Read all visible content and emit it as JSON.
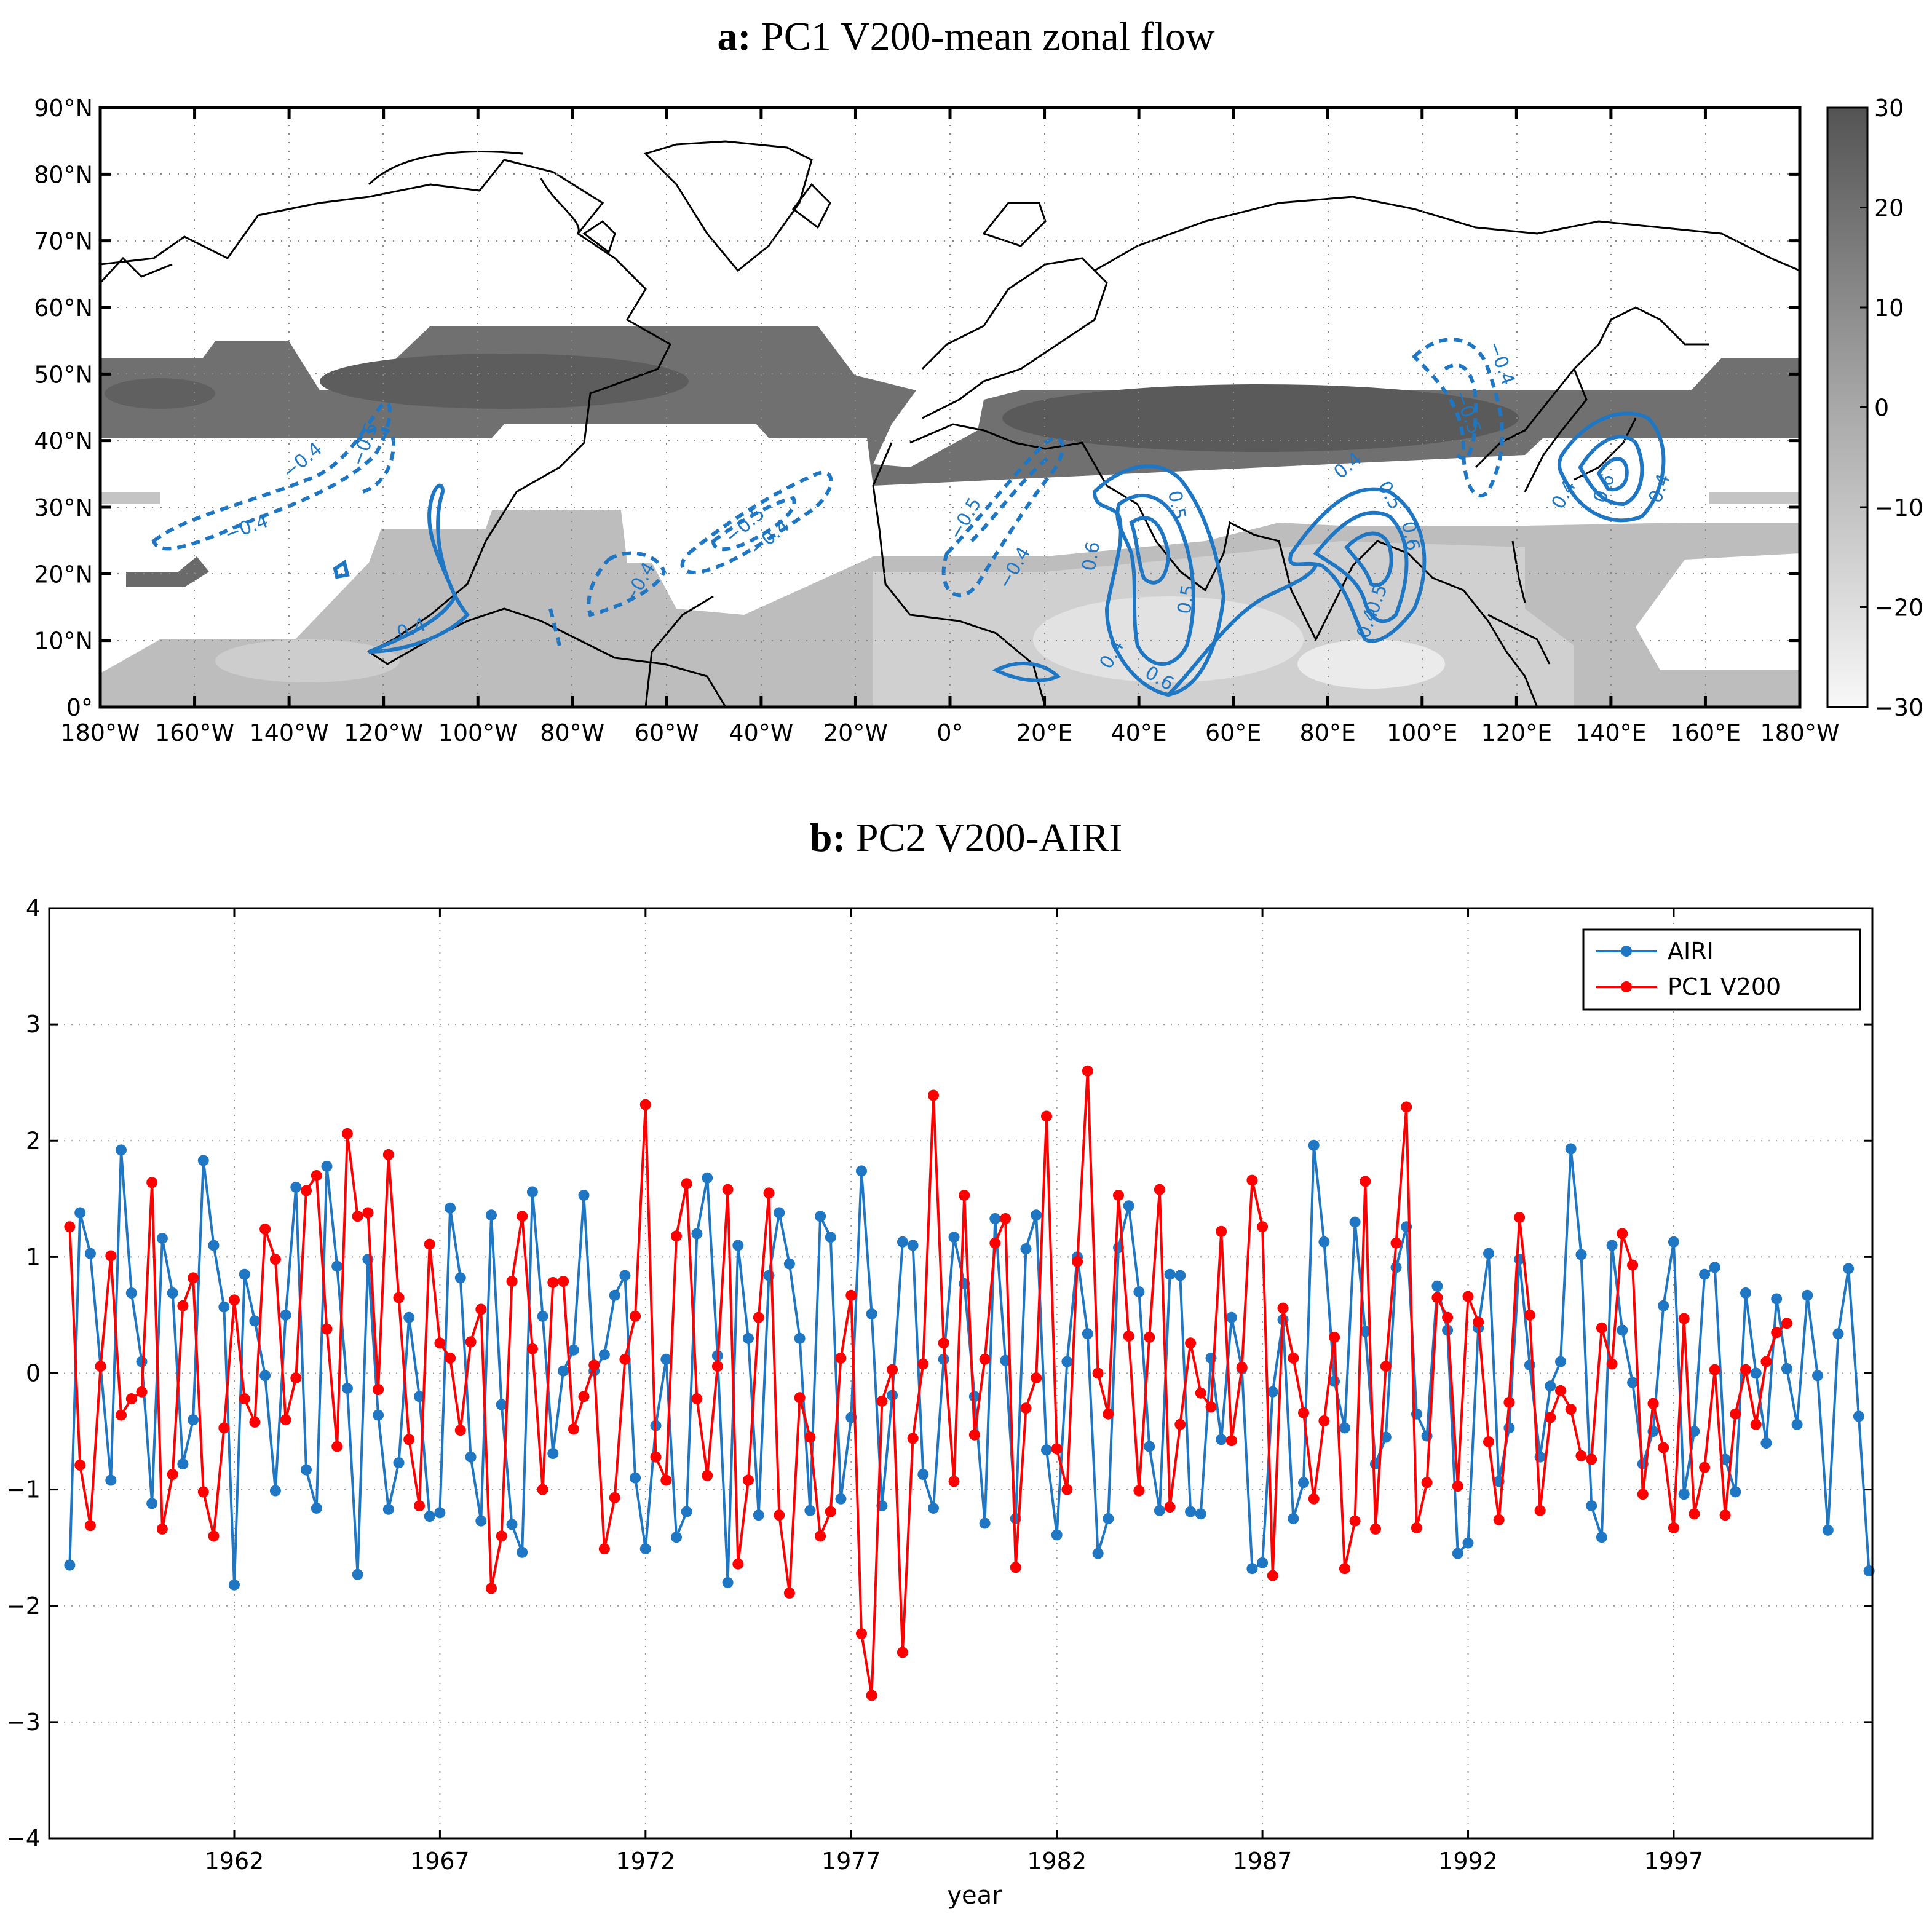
{
  "panel_a": {
    "title_bold": "a:",
    "title_rest": " PC1 V200-mean zonal flow",
    "lon_ticks": [
      "180°W",
      "160°W",
      "140°W",
      "120°W",
      "100°W",
      "80°W",
      "60°W",
      "40°W",
      "20°W",
      "0°",
      "20°E",
      "40°E",
      "60°E",
      "80°E",
      "100°E",
      "120°E",
      "140°E",
      "160°E",
      "180°W"
    ],
    "lat_ticks": [
      "0°",
      "10°N",
      "20°N",
      "30°N",
      "40°N",
      "50°N",
      "60°N",
      "70°N",
      "80°N",
      "90°N"
    ],
    "colorbar_ticks": [
      "30",
      "20",
      "10",
      "0",
      "−10",
      "−20",
      "−30"
    ],
    "contour_labels": [
      "−0.4",
      "−0.4",
      "−0.5",
      "0.4",
      "−0.4",
      "−0.5",
      "−0.4",
      "−0.5",
      "−0.4",
      "0.6",
      "0.5",
      "0.4",
      "0.6",
      "0.5",
      "0.4",
      "0.5",
      "0.6",
      "0.5",
      "0.4",
      "−0.5",
      "−0.4",
      "0.4",
      "0.6",
      "0.4"
    ],
    "colors": {
      "contour": "#1f77c4",
      "coast": "#000000"
    }
  },
  "panel_b": {
    "title_bold": "b:",
    "title_rest": " PC2 V200-AIRI"
  },
  "chart_data": {
    "type": "line",
    "title": "PC2 V200-AIRI",
    "xlabel": "year",
    "ylabel": "",
    "ylim": [
      -4,
      4
    ],
    "xlim": [
      1957.5,
      2001.83
    ],
    "x_start": 1958.0,
    "x_step": 0.25,
    "xticks": [
      1962,
      1967,
      1972,
      1977,
      1982,
      1987,
      1992,
      1997
    ],
    "yticks": [
      -4,
      -3,
      -2,
      -1,
      0,
      1,
      2,
      3,
      4
    ],
    "legend_position": "top-right",
    "series": [
      {
        "name": "AIRI",
        "color": "#1f77c4",
        "values": [
          -1.65,
          1.38,
          1.03,
          0.06,
          -0.92,
          1.92,
          0.69,
          0.1,
          -1.12,
          1.16,
          0.69,
          -0.78,
          -0.4,
          1.83,
          1.1,
          0.57,
          -1.82,
          0.85,
          0.45,
          -0.02,
          -1.01,
          0.5,
          1.6,
          -0.83,
          -1.16,
          1.78,
          0.92,
          -0.13,
          -1.73,
          0.98,
          -0.36,
          -1.17,
          -0.77,
          0.48,
          -0.2,
          -1.23,
          -1.2,
          1.42,
          0.82,
          -0.72,
          -1.27,
          1.36,
          -0.27,
          -1.3,
          -1.54,
          1.56,
          0.49,
          -0.69,
          0.02,
          0.2,
          1.53,
          0.02,
          0.16,
          0.67,
          0.84,
          -0.9,
          -1.51,
          -0.45,
          0.12,
          -1.41,
          -1.19,
          1.2,
          1.68,
          0.15,
          -1.8,
          1.1,
          0.3,
          -1.22,
          0.84,
          1.38,
          0.94,
          0.3,
          -1.18,
          1.35,
          1.17,
          -1.08,
          -0.38,
          1.74,
          0.51,
          -1.14,
          -0.19,
          1.13,
          1.1,
          -0.87,
          -1.16,
          0.12,
          1.17,
          0.77,
          -0.2,
          -1.29,
          1.33,
          0.11,
          -1.25,
          1.07,
          1.36,
          -0.66,
          -1.39,
          0.1,
          1.0,
          0.34,
          -1.55,
          -1.25,
          1.08,
          1.44,
          0.7,
          -0.63,
          -1.18,
          0.85,
          0.84,
          -1.19,
          -1.21,
          0.13,
          -0.57,
          0.48,
          0.04,
          -1.68,
          -1.63,
          -0.16,
          0.46,
          -1.25,
          -0.94,
          1.96,
          1.13,
          -0.07,
          -0.47,
          1.3,
          0.36,
          -0.78,
          -0.55,
          0.91,
          1.26,
          -0.35,
          -0.54,
          0.75,
          0.37,
          -1.55,
          -1.46,
          0.39,
          1.03,
          -0.93,
          -0.47,
          0.98,
          0.07,
          -0.72,
          -0.11,
          0.1,
          1.93,
          1.02,
          -1.14,
          -1.41,
          1.1,
          0.37,
          -0.08,
          -0.78,
          -0.5,
          0.58,
          1.13,
          -1.04,
          -0.5,
          0.85,
          0.91,
          -0.74,
          -1.02,
          0.69,
          0.0,
          -0.6,
          0.64,
          0.04,
          -0.44,
          0.67,
          -0.02,
          -1.35,
          0.34,
          0.9,
          -0.37,
          -1.7
        ]
      },
      {
        "name": "PC1 V200",
        "color": "#ff0000",
        "values": [
          1.26,
          -0.79,
          -1.31,
          0.06,
          1.01,
          -0.36,
          -0.22,
          -0.16,
          1.64,
          -1.34,
          -0.87,
          0.58,
          0.82,
          -1.02,
          -1.4,
          -0.47,
          0.63,
          -0.22,
          -0.42,
          1.24,
          0.98,
          -0.4,
          -0.04,
          1.57,
          1.7,
          0.38,
          -0.63,
          2.06,
          1.35,
          1.38,
          -0.14,
          1.88,
          0.65,
          -0.57,
          -1.14,
          1.11,
          0.26,
          0.13,
          -0.49,
          0.27,
          0.55,
          -1.85,
          -1.4,
          0.79,
          1.35,
          0.21,
          -1.0,
          0.78,
          0.79,
          -0.48,
          -0.2,
          0.07,
          -1.51,
          -1.07,
          0.12,
          0.49,
          2.31,
          -0.72,
          -0.92,
          1.18,
          1.63,
          -0.22,
          -0.88,
          0.06,
          1.58,
          -1.64,
          -0.92,
          0.48,
          1.55,
          -1.22,
          -1.89,
          -0.21,
          -0.55,
          -1.4,
          -1.19,
          0.13,
          0.67,
          -2.24,
          -2.77,
          -0.24,
          0.03,
          -2.4,
          -0.56,
          0.08,
          2.39,
          0.26,
          -0.93,
          1.53,
          -0.53,
          0.12,
          1.12,
          1.33,
          -1.67,
          -0.3,
          -0.04,
          2.21,
          -0.65,
          -1.0,
          0.96,
          2.6,
          0.0,
          -0.35,
          1.53,
          0.32,
          -1.01,
          0.31,
          1.58,
          -1.15,
          -0.44,
          0.26,
          -0.17,
          -0.29,
          1.22,
          -0.58,
          0.05,
          1.66,
          1.26,
          -1.74,
          0.56,
          0.13,
          -0.34,
          -1.08,
          -0.41,
          0.31,
          -1.68,
          -1.27,
          1.65,
          -1.34,
          0.06,
          1.12,
          2.29,
          -1.33,
          -0.94,
          0.65,
          0.48,
          -0.97,
          0.66,
          0.44,
          -0.59,
          -1.26,
          -0.25,
          1.34,
          0.5,
          -1.18,
          -0.38,
          -0.15,
          -0.31,
          -0.71,
          -0.74,
          0.39,
          0.08,
          1.2,
          0.93,
          -1.04,
          -0.26,
          -0.64,
          -1.33,
          0.47,
          -1.21,
          -0.81,
          0.03,
          -1.22,
          -0.35,
          0.03,
          -0.44,
          0.1,
          0.35,
          0.43
        ]
      }
    ]
  }
}
